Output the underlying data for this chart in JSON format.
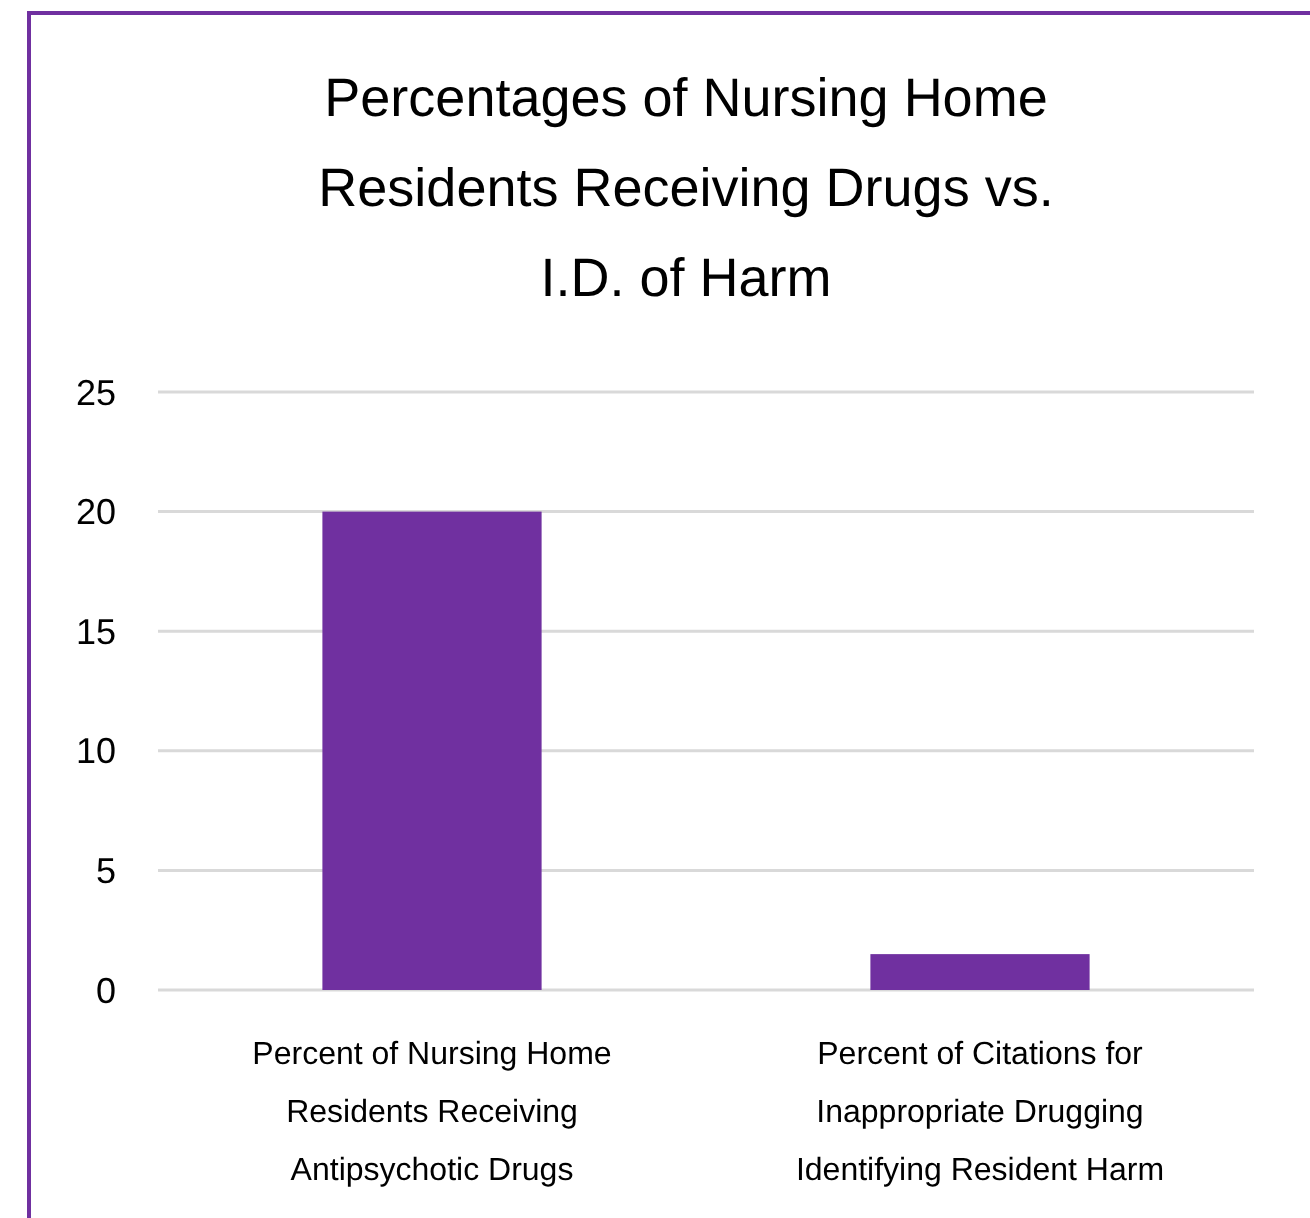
{
  "chart_data": {
    "type": "bar",
    "title": "Percentages of Nursing Home Residents Receiving Drugs vs. I.D. of Harm",
    "categories": [
      "Percent of Nursing Home Residents Receiving Antipsychotic Drugs",
      "Percent of Citations for Inappropriate Drugging Identifying Resident Harm"
    ],
    "values": [
      20,
      1.5
    ],
    "color": "#7030a0",
    "ylim": [
      0,
      25
    ],
    "yticks": [
      0,
      5,
      10,
      15,
      20,
      25
    ],
    "grid": "y"
  }
}
